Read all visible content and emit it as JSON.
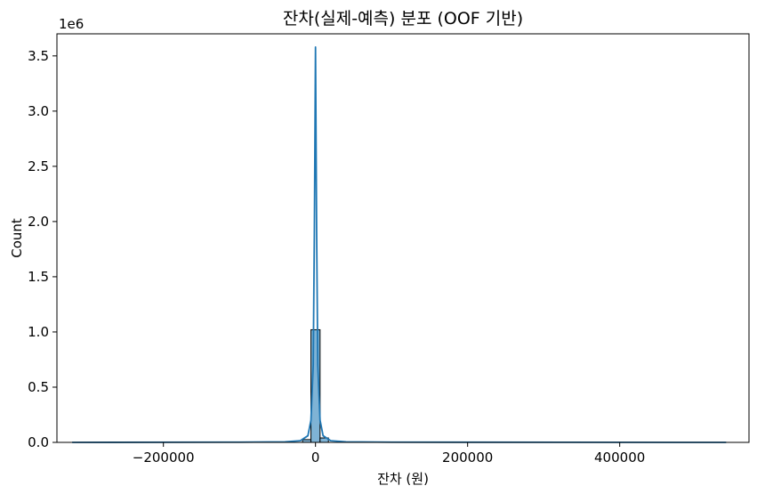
{
  "chart_data": {
    "type": "bar",
    "subtype": "histogram-with-kde",
    "title": "잔차(실제-예측) 분포 (OOF 기반)",
    "xlabel": "잔차 (원)",
    "ylabel": "Count",
    "y_offset_label": "1e6",
    "xlim": [
      -340000,
      570000
    ],
    "ylim": [
      0,
      3700000
    ],
    "x_ticks": [
      -200000,
      0,
      200000,
      400000
    ],
    "x_tick_labels": [
      "−200000",
      "0",
      "200000",
      "400000"
    ],
    "y_ticks": [
      0,
      500000,
      1000000,
      1500000,
      2000000,
      2500000,
      3000000,
      3500000
    ],
    "y_tick_labels": [
      "0.0",
      "0.5",
      "1.0",
      "1.5",
      "2.0",
      "2.5",
      "3.0",
      "3.5"
    ],
    "bins": [
      {
        "x0": -17000,
        "x1": -6000,
        "count": 25000
      },
      {
        "x0": -6000,
        "x1": 6000,
        "count": 1020000
      },
      {
        "x0": 6000,
        "x1": 17000,
        "count": 40000
      }
    ],
    "kde": {
      "x": [
        -320000,
        -100000,
        -40000,
        -20000,
        -10000,
        -6000,
        -3000,
        -1500,
        0,
        1500,
        3000,
        6000,
        10000,
        20000,
        40000,
        100000,
        540000
      ],
      "y": [
        0,
        2000,
        5000,
        15000,
        60000,
        200000,
        700000,
        1900000,
        3580000,
        1900000,
        700000,
        200000,
        60000,
        15000,
        5000,
        2000,
        0
      ]
    },
    "colors": {
      "bar_fill": "#7fb3d5",
      "bar_edge": "#000000",
      "kde_line": "#1f77b4"
    },
    "grid": false,
    "legend": "none"
  }
}
